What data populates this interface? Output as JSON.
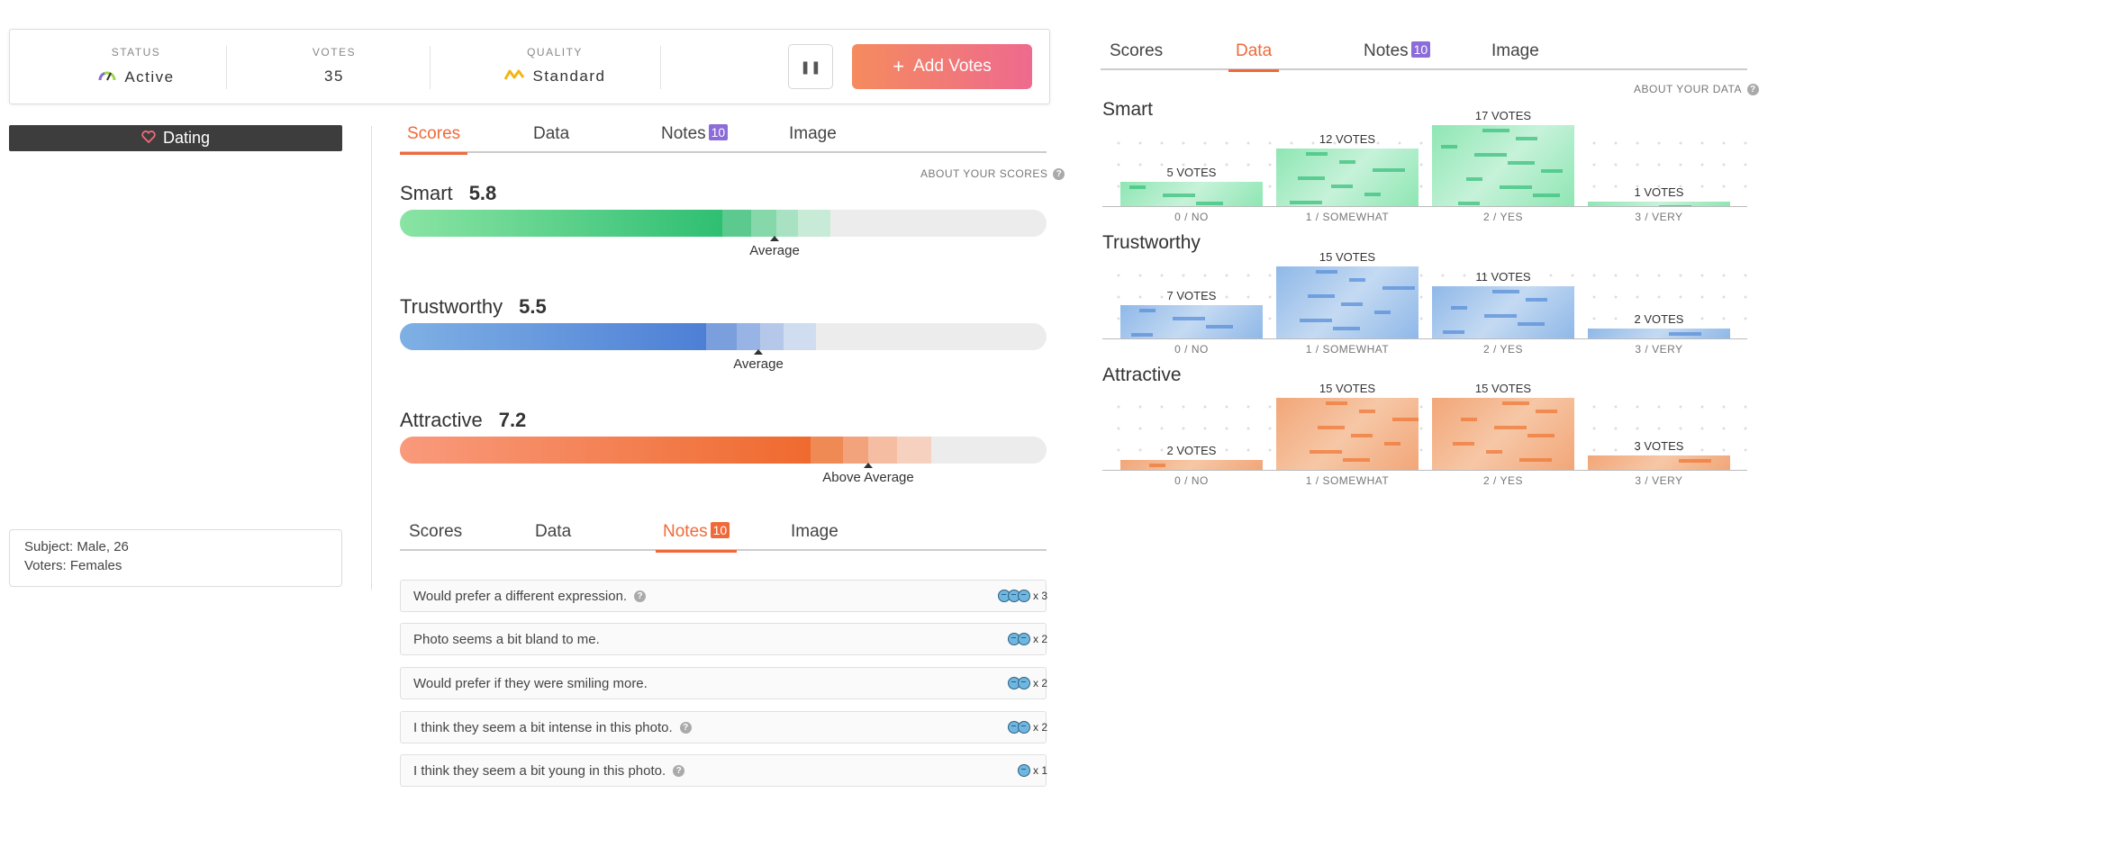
{
  "status_card": {
    "status_label": "STATUS",
    "status_value": "Active",
    "votes_label": "VOTES",
    "votes_value": "35",
    "quality_label": "QUALITY",
    "quality_value": "Standard",
    "pause_icon": "pause-icon",
    "add_votes_label": "Add Votes"
  },
  "category": {
    "label": "Dating",
    "icon": "heart-icon"
  },
  "subject": {
    "line1": "Subject: Male, 26",
    "line2": "Voters: Females"
  },
  "tabs": {
    "scores": "Scores",
    "data": "Data",
    "notes": "Notes",
    "notes_count": "10",
    "image": "Image"
  },
  "scores_panel": {
    "about": "ABOUT YOUR SCORES",
    "items": [
      {
        "name": "Smart",
        "score": "5.8",
        "marker": "Average"
      },
      {
        "name": "Trustworthy",
        "score": "5.5",
        "marker": "Average"
      },
      {
        "name": "Attractive",
        "score": "7.2",
        "marker": "Above Average"
      }
    ]
  },
  "notes_panel": {
    "items": [
      {
        "text": "Would prefer a different expression.",
        "count": "x 3",
        "help": true
      },
      {
        "text": "Photo seems a bit bland to me.",
        "count": "x 2",
        "help": false
      },
      {
        "text": "Would prefer if they were smiling more.",
        "count": "x 2",
        "help": false
      },
      {
        "text": "I think they seem a bit intense in this photo.",
        "count": "x 2",
        "help": true
      },
      {
        "text": "I think they seem a bit young in this photo.",
        "count": "x 1",
        "help": true
      }
    ]
  },
  "data_panel": {
    "about": "ABOUT YOUR DATA",
    "x_labels": [
      "0 / NO",
      "1 / SOMEWHAT",
      "2 / YES",
      "3 / VERY"
    ],
    "colors": {
      "smart": "#52d08e",
      "trustworthy": "#6a9ee0",
      "attractive": "#f07a3c"
    }
  },
  "chart_data": [
    {
      "type": "bar",
      "title": "Smart",
      "categories": [
        "0 / NO",
        "1 / SOMEWHAT",
        "2 / YES",
        "3 / VERY"
      ],
      "values": [
        5,
        12,
        17,
        1
      ],
      "labels": [
        "5 VOTES",
        "12 VOTES",
        "17 VOTES",
        "1 VOTES"
      ]
    },
    {
      "type": "bar",
      "title": "Trustworthy",
      "categories": [
        "0 / NO",
        "1 / SOMEWHAT",
        "2 / YES",
        "3 / VERY"
      ],
      "values": [
        7,
        15,
        11,
        2
      ],
      "labels": [
        "7 VOTES",
        "15 VOTES",
        "11 VOTES",
        "2 VOTES"
      ]
    },
    {
      "type": "bar",
      "title": "Attractive",
      "categories": [
        "0 / NO",
        "1 / SOMEWHAT",
        "2 / YES",
        "3 / VERY"
      ],
      "values": [
        2,
        15,
        15,
        3
      ],
      "labels": [
        "2 VOTES",
        "15 VOTES",
        "15 VOTES",
        "3 VOTES"
      ]
    }
  ]
}
